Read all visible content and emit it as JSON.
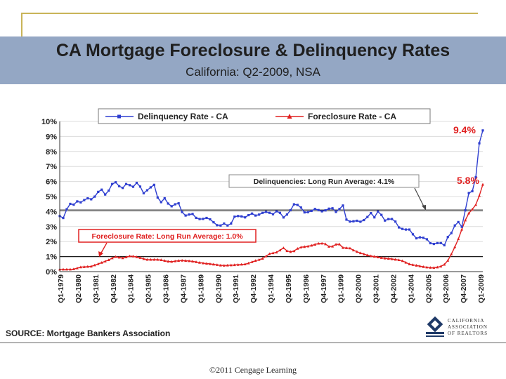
{
  "slide": {
    "title": "CA Mortgage Foreclosure & Delinquency Rates",
    "subtitle": "California: Q2-2009, NSA",
    "source": "SOURCE: Mortgage Bankers Association",
    "logo_lines": [
      "CALIFORNIA",
      "ASSOCIATION",
      "OF REALTORS"
    ],
    "copyright": "©2011 Cengage Learning"
  },
  "colors": {
    "banner": "#94a7c4",
    "delinquency": "#2f3fd0",
    "foreclosure": "#e02020",
    "callout_red": "#e02020",
    "avg_line": "#1a1a1a"
  },
  "chart_data": {
    "type": "line",
    "ylim": [
      0,
      10
    ],
    "yticks": [
      "0%",
      "1%",
      "2%",
      "3%",
      "4%",
      "5%",
      "6%",
      "7%",
      "8%",
      "9%",
      "10%"
    ],
    "x_tick_labels": [
      "Q1-1979",
      "Q2-1980",
      "Q3-1981",
      "Q4-1982",
      "Q1-1984",
      "Q2-1985",
      "Q3-1986",
      "Q4-1987",
      "Q1-1989",
      "Q2-1990",
      "Q3-1991",
      "Q4-1992",
      "Q1-1994",
      "Q2-1995",
      "Q3-1996",
      "Q4-1997",
      "Q1-1999",
      "Q2-2000",
      "Q3-2001",
      "Q4-2002",
      "Q1-2004",
      "Q2-2005",
      "Q3-2006",
      "Q4-2007",
      "Q1-2009"
    ],
    "n_quarters": 122,
    "legend": [
      "Delinquency Rate - CA",
      "Foreclosure Rate - CA"
    ],
    "series": [
      {
        "name": "Delinquency Rate - CA",
        "key_points": [
          [
            0,
            3.7
          ],
          [
            2,
            3.5
          ],
          [
            3,
            4.6
          ],
          [
            5,
            4.4
          ],
          [
            6,
            4.7
          ],
          [
            8,
            4.6
          ],
          [
            10,
            4.9
          ],
          [
            12,
            4.8
          ],
          [
            14,
            5.2
          ],
          [
            15,
            5.6
          ],
          [
            17,
            5.1
          ],
          [
            19,
            5.6
          ],
          [
            20,
            6.1
          ],
          [
            22,
            5.7
          ],
          [
            23,
            5.5
          ],
          [
            25,
            5.9
          ],
          [
            27,
            5.6
          ],
          [
            29,
            6.0
          ],
          [
            31,
            5.2
          ],
          [
            33,
            5.5
          ],
          [
            35,
            5.8
          ],
          [
            37,
            4.5
          ],
          [
            39,
            4.9
          ],
          [
            41,
            4.3
          ],
          [
            43,
            4.5
          ],
          [
            44,
            4.6
          ],
          [
            46,
            3.7
          ],
          [
            48,
            3.8
          ],
          [
            49,
            3.9
          ],
          [
            51,
            3.5
          ],
          [
            53,
            3.5
          ],
          [
            55,
            3.6
          ],
          [
            57,
            3.3
          ],
          [
            59,
            3.0
          ],
          [
            61,
            3.2
          ],
          [
            63,
            3.0
          ],
          [
            65,
            3.7
          ],
          [
            67,
            3.7
          ],
          [
            69,
            3.6
          ],
          [
            71,
            3.9
          ],
          [
            73,
            3.7
          ],
          [
            75,
            3.9
          ],
          [
            77,
            4.0
          ],
          [
            79,
            3.8
          ],
          [
            81,
            4.1
          ],
          [
            83,
            3.6
          ],
          [
            85,
            3.9
          ],
          [
            87,
            4.5
          ],
          [
            89,
            4.4
          ],
          [
            91,
            3.9
          ],
          [
            93,
            4.0
          ],
          [
            95,
            4.2
          ],
          [
            97,
            4.0
          ],
          [
            99,
            4.1
          ],
          [
            101,
            4.3
          ],
          [
            102,
            3.9
          ],
          [
            104,
            4.2
          ],
          [
            105,
            4.5
          ],
          [
            106,
            3.5
          ],
          [
            108,
            3.3
          ],
          [
            110,
            3.4
          ],
          [
            112,
            3.3
          ],
          [
            114,
            3.6
          ],
          [
            116,
            4.0
          ],
          [
            117,
            3.5
          ],
          [
            118,
            4.0
          ],
          [
            119,
            4.0
          ],
          [
            120,
            3.4
          ],
          [
            121,
            3.4
          ],
          [
            122,
            3.5
          ],
          [
            124,
            3.5
          ],
          [
            126,
            2.9
          ],
          [
            128,
            2.8
          ],
          [
            130,
            2.8
          ],
          [
            132,
            2.2
          ],
          [
            134,
            2.3
          ],
          [
            136,
            2.2
          ],
          [
            138,
            1.8
          ],
          [
            140,
            1.9
          ],
          [
            142,
            1.9
          ],
          [
            143,
            1.7
          ],
          [
            144,
            2.3
          ],
          [
            146,
            2.7
          ],
          [
            147,
            3.3
          ],
          [
            148,
            3.3
          ],
          [
            149,
            2.8
          ],
          [
            151,
            4.5
          ],
          [
            152,
            5.4
          ],
          [
            153,
            5.3
          ],
          [
            154,
            5.8
          ],
          [
            155,
            7.0
          ],
          [
            156,
            9.2
          ],
          [
            157,
            9.4
          ]
        ],
        "end_label": "9.4%"
      },
      {
        "name": "Foreclosure Rate - CA",
        "key_points": [
          [
            0,
            0.15
          ],
          [
            5,
            0.15
          ],
          [
            8,
            0.3
          ],
          [
            12,
            0.35
          ],
          [
            16,
            0.6
          ],
          [
            19,
            0.8
          ],
          [
            21,
            1.0
          ],
          [
            24,
            0.9
          ],
          [
            27,
            1.05
          ],
          [
            30,
            0.95
          ],
          [
            33,
            0.8
          ],
          [
            38,
            0.8
          ],
          [
            42,
            0.65
          ],
          [
            46,
            0.75
          ],
          [
            50,
            0.7
          ],
          [
            55,
            0.55
          ],
          [
            58,
            0.5
          ],
          [
            62,
            0.4
          ],
          [
            67,
            0.45
          ],
          [
            71,
            0.5
          ],
          [
            74,
            0.7
          ],
          [
            77,
            0.85
          ],
          [
            80,
            1.2
          ],
          [
            83,
            1.3
          ],
          [
            85,
            1.6
          ],
          [
            87,
            1.3
          ],
          [
            89,
            1.35
          ],
          [
            91,
            1.6
          ],
          [
            95,
            1.7
          ],
          [
            99,
            1.9
          ],
          [
            101,
            1.85
          ],
          [
            103,
            1.6
          ],
          [
            106,
            1.9
          ],
          [
            108,
            1.55
          ],
          [
            110,
            1.6
          ],
          [
            112,
            1.4
          ],
          [
            115,
            1.2
          ],
          [
            118,
            1.05
          ],
          [
            120,
            1.0
          ],
          [
            123,
            0.9
          ],
          [
            126,
            0.85
          ],
          [
            130,
            0.75
          ],
          [
            133,
            0.5
          ],
          [
            136,
            0.4
          ],
          [
            139,
            0.3
          ],
          [
            142,
            0.25
          ],
          [
            144,
            0.3
          ],
          [
            146,
            0.4
          ],
          [
            148,
            0.8
          ],
          [
            150,
            1.5
          ],
          [
            152,
            2.3
          ],
          [
            154,
            3.3
          ],
          [
            156,
            4.0
          ],
          [
            158,
            4.3
          ],
          [
            160,
            5.2
          ],
          [
            161,
            5.8
          ]
        ],
        "end_label": "5.8%"
      }
    ],
    "reference_lines": [
      {
        "value": 4.1,
        "label": "Delinquencies: Long Run Average: 4.1%"
      },
      {
        "value": 1.0,
        "label": "Foreclosure Rate: Long Run Average: 1.0%"
      }
    ]
  }
}
